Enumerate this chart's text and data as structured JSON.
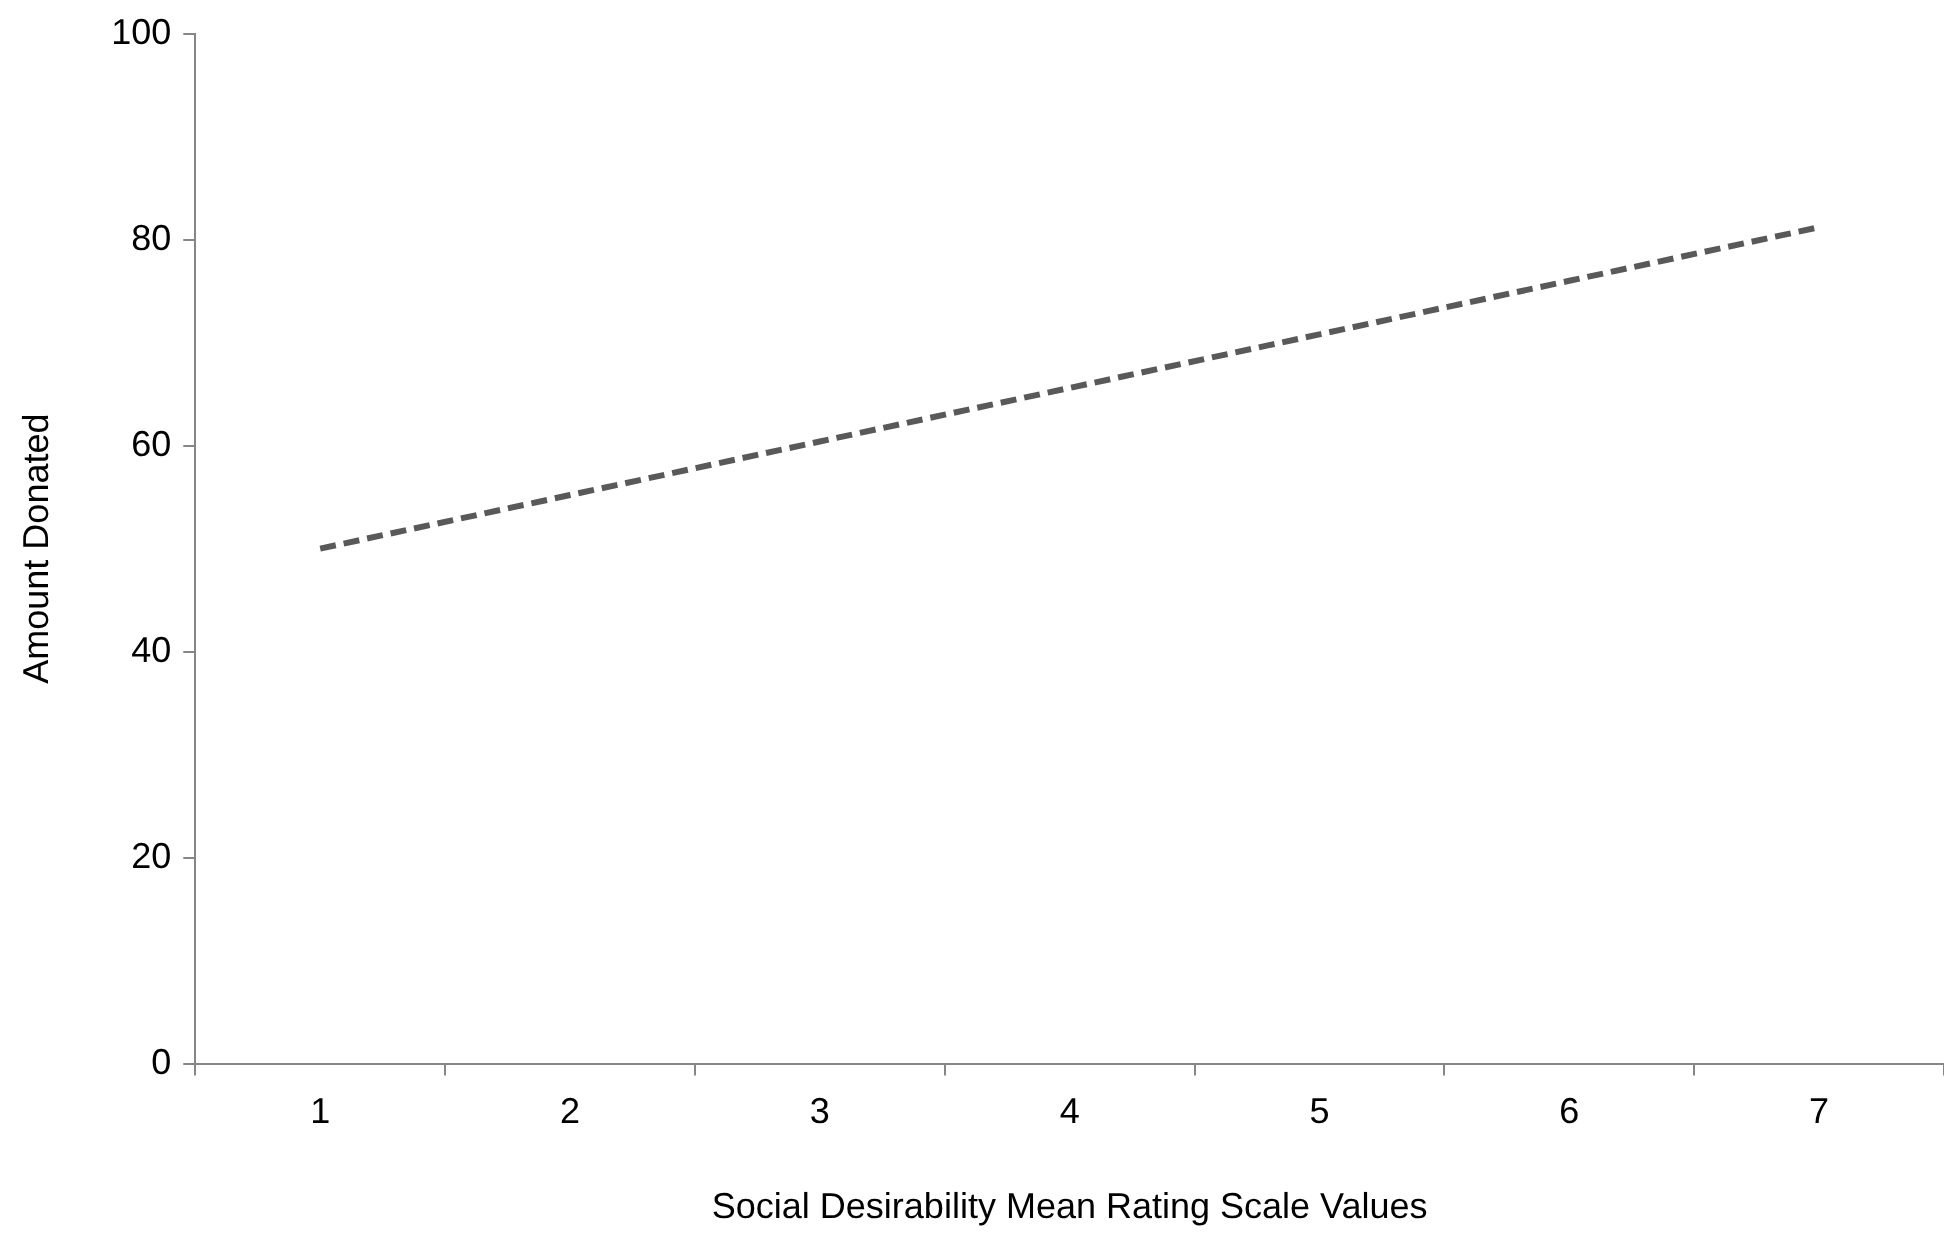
{
  "chart_data": {
    "type": "line",
    "xlabel": "Social Desirability Mean Rating Scale Values",
    "ylabel": "Amount Donated",
    "categories": [
      "1",
      "2",
      "3",
      "4",
      "5",
      "6",
      "7"
    ],
    "series": [
      {
        "color": "#595959",
        "values": [
          50,
          55.2,
          60.4,
          65.6,
          70.8,
          76,
          81.2
        ]
      }
    ],
    "ylim": [
      0,
      100
    ],
    "yticks": [
      0,
      20,
      40,
      60,
      80,
      100
    ],
    "grid": false,
    "legend": false,
    "marker": "none",
    "line_style": "dashed"
  }
}
